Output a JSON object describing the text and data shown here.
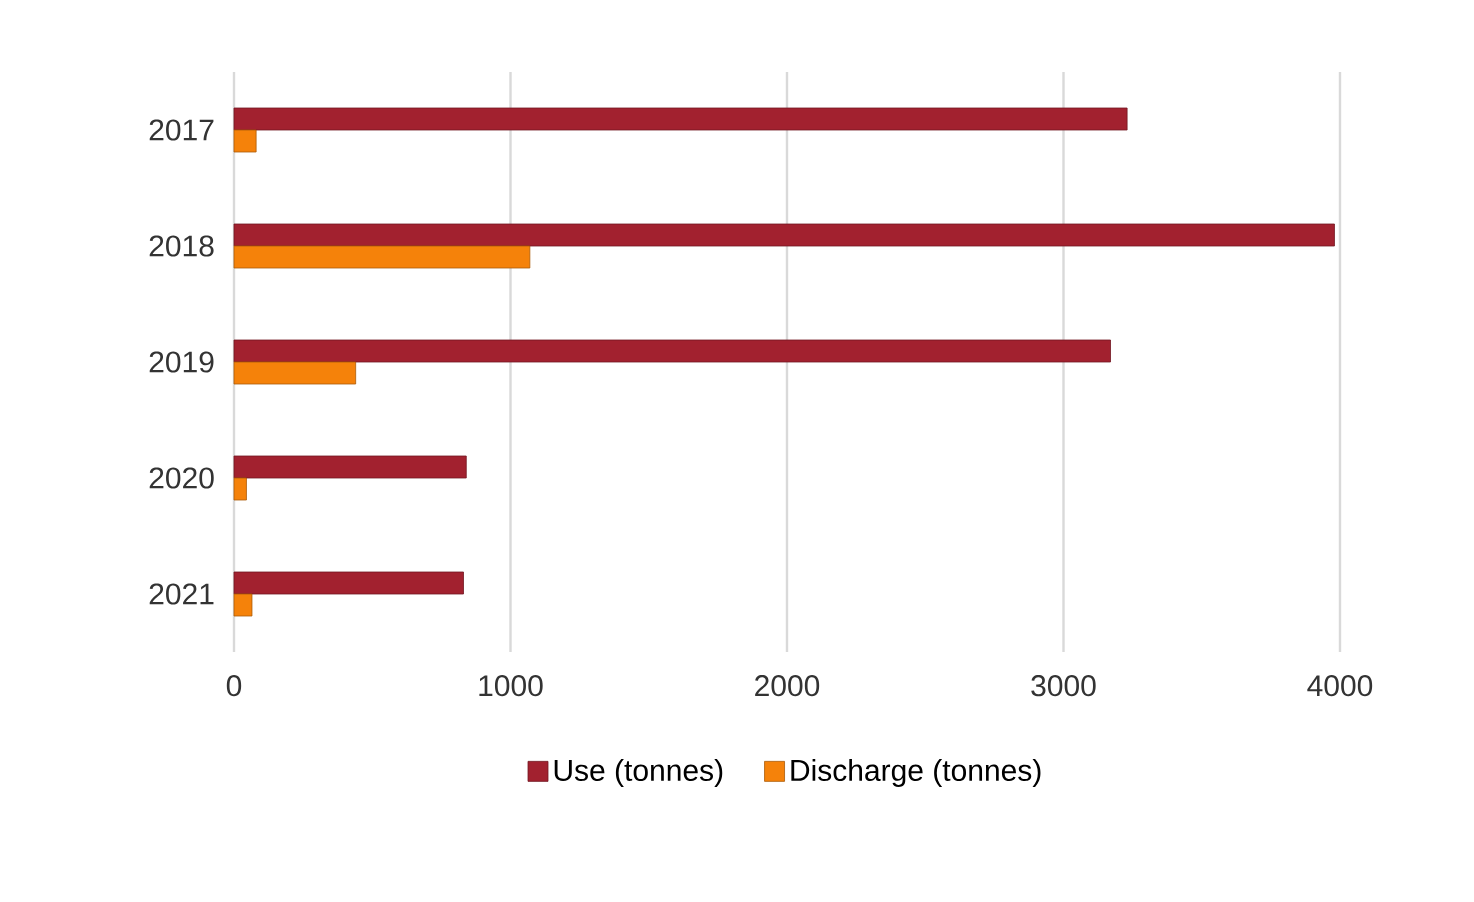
{
  "chart_data": {
    "type": "bar",
    "orientation": "horizontal",
    "categories": [
      "2017",
      "2018",
      "2019",
      "2020",
      "2021"
    ],
    "series": [
      {
        "name": "Use (tonnes)",
        "color": "#a2212f",
        "values": [
          3230,
          3980,
          3170,
          840,
          830
        ]
      },
      {
        "name": "Discharge (tonnes)",
        "color": "#f5820a",
        "values": [
          80,
          1070,
          440,
          45,
          65
        ]
      }
    ],
    "xlim": [
      0,
      4000
    ],
    "xticks": [
      0,
      1000,
      2000,
      3000,
      4000
    ],
    "grid": "x",
    "legend": "bottom"
  }
}
